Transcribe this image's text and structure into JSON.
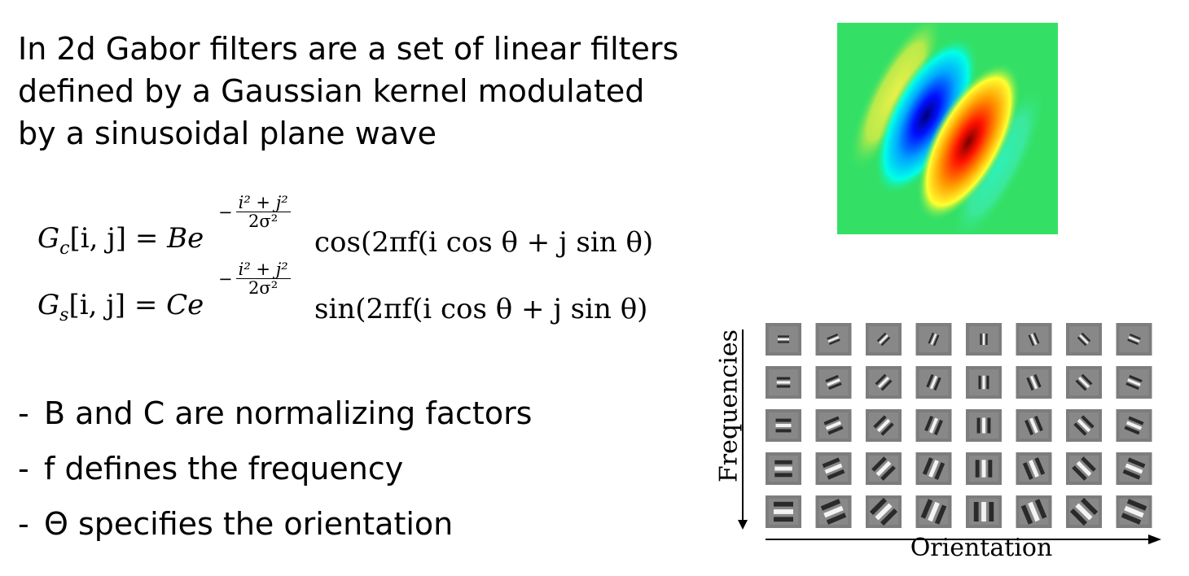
{
  "intro": {
    "lines": [
      "In 2d Gabor filters are a set of linear filters",
      "defined by a Gaussian kernel modulated",
      "by a sinusoidal plane wave"
    ]
  },
  "equations": [
    {
      "lhs_base": "G",
      "lhs_sub": "c",
      "lhs_args": "[i, j] = ",
      "coef": "B",
      "exp_num": "i² + j²",
      "exp_den": "2σ²",
      "rhs": "cos(2πf(i cos θ + j sin θ)"
    },
    {
      "lhs_base": "G",
      "lhs_sub": "s",
      "lhs_args": "[i, j] = ",
      "coef": "C",
      "exp_num": "i² + j²",
      "exp_den": "2σ²",
      "rhs": "sin(2πf(i cos θ + j sin θ)"
    }
  ],
  "bullets": [
    {
      "dash": "-",
      "text": "B and C are normalizing factors"
    },
    {
      "dash": "-",
      "text": "f defines the frequency"
    },
    {
      "dash": "-",
      "text": "Θ specifies the orientation"
    }
  ],
  "filter_bank": {
    "y_label": "Frequencies",
    "x_label": "Orientation",
    "rows": 5,
    "cols": 8
  },
  "colors": {
    "text": "#000000",
    "heatmap_bg": "#33e065",
    "tile_bg": "#7d7d7d"
  }
}
